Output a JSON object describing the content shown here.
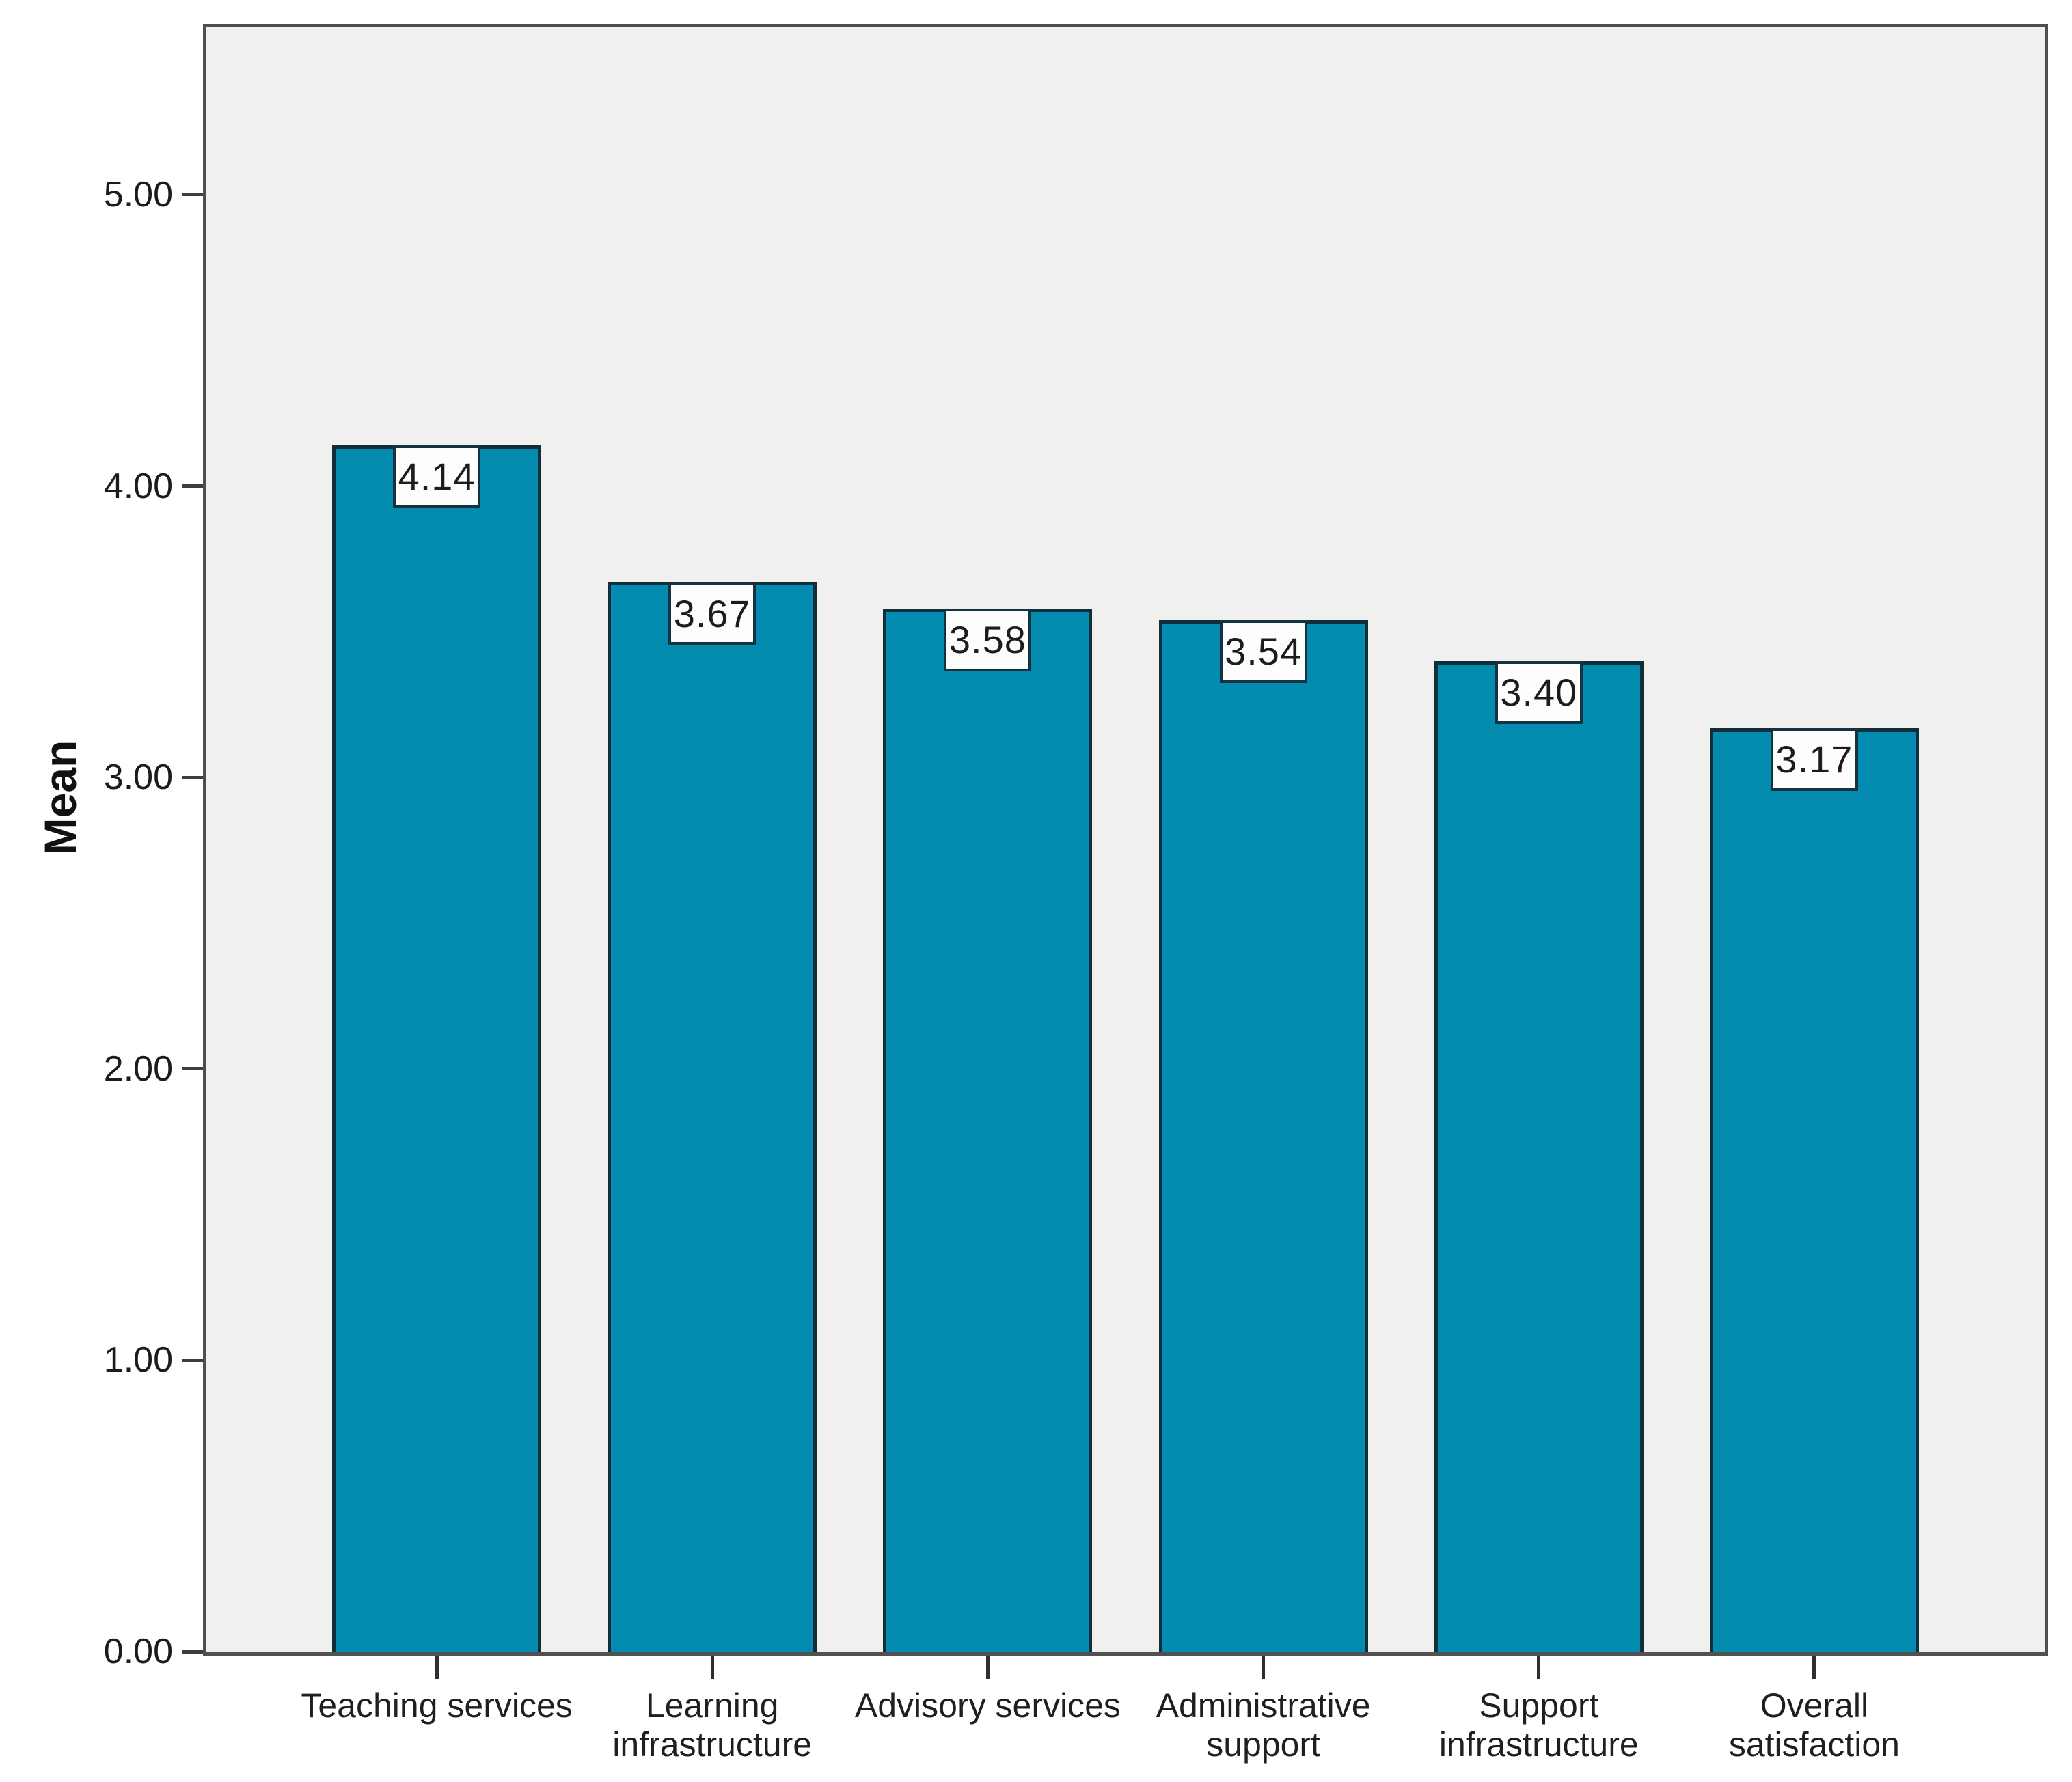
{
  "chart_data": {
    "type": "bar",
    "title": "",
    "xlabel": "",
    "ylabel": "Mean",
    "categories": [
      "Teaching services",
      "Learning infrastructure",
      "Advisory services",
      "Administrative support",
      "Support infrastructure",
      "Overall satisfaction"
    ],
    "values": [
      4.14,
      3.67,
      3.58,
      3.54,
      3.4,
      3.17
    ],
    "value_labels": [
      "4.14",
      "3.67",
      "3.58",
      "3.54",
      "3.40",
      "3.17"
    ],
    "yticks": [
      {
        "value": 0,
        "label": "0.00"
      },
      {
        "value": 1,
        "label": "1.00"
      },
      {
        "value": 2,
        "label": "2.00"
      },
      {
        "value": 3,
        "label": "3.00"
      },
      {
        "value": 4,
        "label": "4.00"
      },
      {
        "value": 5,
        "label": "5.00"
      }
    ],
    "ylim": [
      0,
      5
    ],
    "grid": false,
    "legend": "none",
    "colors": {
      "bar_fill": "#048cb0",
      "bar_border": "#112f3a",
      "plot_background": "#f0f0ef",
      "plot_border": "#4e4e4e",
      "label_box_background": "#fdfdfd",
      "label_box_border": "#14333f",
      "text": "#1c1c1c"
    }
  }
}
